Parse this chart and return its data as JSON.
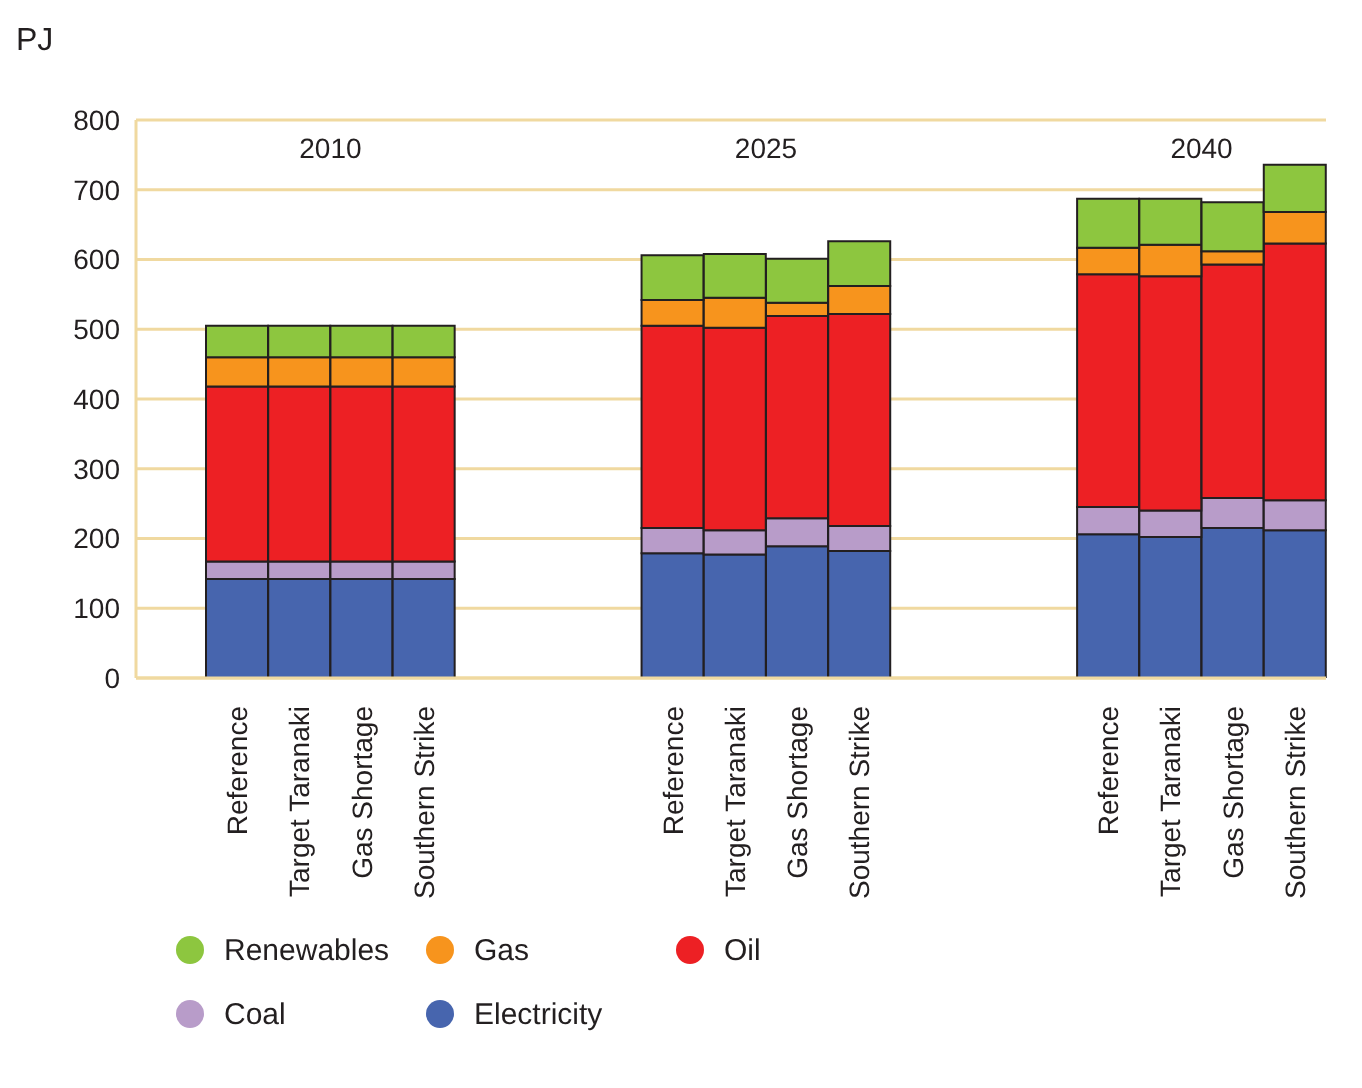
{
  "chart_data": {
    "type": "bar",
    "stacked": true,
    "ylabel": "PJ",
    "categories": [
      "Reference",
      "Target Taranaki",
      "Gas Shortage",
      "Southern Strike",
      null,
      null,
      null,
      "Reference",
      "Target Taranaki",
      "Gas Shortage",
      "Southern Strike",
      null,
      null,
      null,
      "Reference",
      "Target Taranaki",
      "Gas Shortage",
      "Southern Strike"
    ],
    "series": [
      {
        "name": "Electricity",
        "color": "#4765ae",
        "values": [
          142,
          142,
          142,
          142,
          null,
          null,
          null,
          179,
          177,
          189,
          182,
          null,
          null,
          null,
          206,
          202,
          215,
          212
        ]
      },
      {
        "name": "Coal",
        "color": "#b89cc9",
        "values": [
          25,
          25,
          25,
          25,
          null,
          null,
          null,
          36,
          35,
          40,
          36,
          null,
          null,
          null,
          39,
          38,
          43,
          43
        ]
      },
      {
        "name": "Oil",
        "color": "#ed2024",
        "values": [
          251,
          251,
          251,
          251,
          null,
          null,
          null,
          290,
          290,
          290,
          304,
          null,
          null,
          null,
          334,
          336,
          335,
          368
        ]
      },
      {
        "name": "Gas",
        "color": "#f7941d",
        "values": [
          42,
          42,
          42,
          42,
          null,
          null,
          null,
          37,
          43,
          19,
          40,
          null,
          null,
          null,
          38,
          45,
          19,
          45
        ]
      },
      {
        "name": "Renewables",
        "color": "#8dc63f",
        "values": [
          45,
          45,
          45,
          45,
          null,
          null,
          null,
          64,
          63,
          63,
          64,
          null,
          null,
          null,
          70,
          66,
          70,
          68
        ]
      }
    ],
    "annotations": [
      "2010",
      "2025",
      "2040"
    ],
    "ylim": [
      0,
      800
    ],
    "yticks": [
      0,
      100,
      200,
      300,
      400,
      500,
      600,
      700,
      800
    ],
    "grid": "y",
    "legend": "bottom"
  }
}
